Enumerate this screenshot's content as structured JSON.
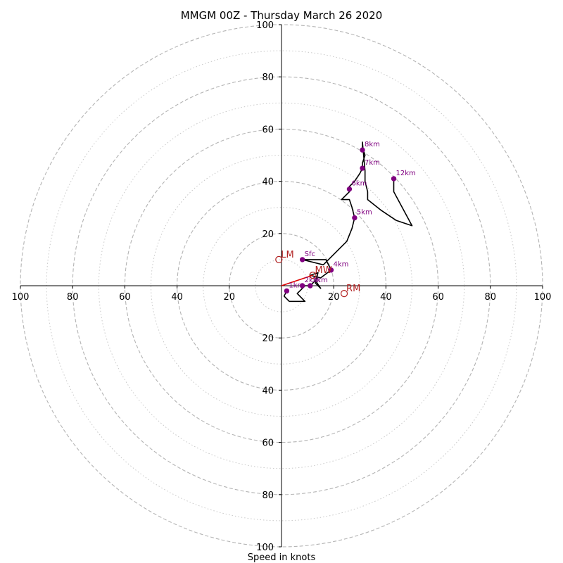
{
  "chart_data": {
    "type": "scatter",
    "title": "MMGM 00Z - Thursday March 26 2020",
    "xlabel": "Speed in knots",
    "xlim": [
      -100,
      100
    ],
    "ylim": [
      -100,
      100
    ],
    "rings_major": [
      20,
      40,
      60,
      80,
      100
    ],
    "rings_minor": [
      10,
      30,
      50,
      70,
      90
    ],
    "tick_labels": [
      "100",
      "80",
      "60",
      "40",
      "20",
      "20",
      "40",
      "60",
      "80",
      "100"
    ],
    "tick_values": [
      -100,
      -80,
      -60,
      -40,
      -20,
      20,
      40,
      60,
      80,
      100
    ],
    "hodograph": {
      "color": "#000000",
      "points": [
        [
          2,
          -2
        ],
        [
          1,
          -4
        ],
        [
          3,
          -6
        ],
        [
          9,
          -6
        ],
        [
          6,
          -3
        ],
        [
          7,
          -2
        ],
        [
          9,
          0
        ],
        [
          11,
          0
        ],
        [
          13,
          2
        ],
        [
          15,
          -1
        ],
        [
          13,
          1
        ],
        [
          14,
          5
        ],
        [
          11,
          4
        ],
        [
          15,
          3
        ],
        [
          19,
          6
        ],
        [
          17,
          10
        ],
        [
          9,
          10
        ],
        [
          8,
          10
        ],
        [
          16,
          8
        ],
        [
          22,
          14
        ],
        [
          25,
          17
        ],
        [
          27,
          22
        ],
        [
          28,
          26
        ],
        [
          27,
          30
        ],
        [
          26,
          33
        ],
        [
          23,
          33
        ],
        [
          26,
          36
        ],
        [
          26,
          38
        ],
        [
          28,
          40
        ],
        [
          30,
          43
        ],
        [
          31,
          45
        ],
        [
          31,
          47
        ],
        [
          32,
          50
        ],
        [
          31,
          53
        ],
        [
          31,
          55
        ],
        [
          32,
          44
        ],
        [
          32,
          40
        ],
        [
          33,
          36
        ],
        [
          33,
          33
        ],
        [
          38,
          29
        ],
        [
          44,
          25
        ],
        [
          50,
          23
        ],
        [
          43,
          36
        ],
        [
          43,
          41
        ]
      ]
    },
    "height_markers": [
      {
        "label": "Sfc",
        "x": 8,
        "y": 10
      },
      {
        "label": "1km",
        "x": 2,
        "y": -2
      },
      {
        "label": "2km",
        "x": 8,
        "y": 0
      },
      {
        "label": "3km",
        "x": 11,
        "y": 0
      },
      {
        "label": "4km",
        "x": 19,
        "y": 6
      },
      {
        "label": "5km",
        "x": 28,
        "y": 26
      },
      {
        "label": "6km",
        "x": 26,
        "y": 37
      },
      {
        "label": "7km",
        "x": 31,
        "y": 45
      },
      {
        "label": "8km",
        "x": 31,
        "y": 52
      },
      {
        "label": "12km",
        "x": 43,
        "y": 41
      }
    ],
    "marker_color": "#800080",
    "motion_markers": [
      {
        "label": "LM",
        "x": -1,
        "y": 10
      },
      {
        "label": "MW",
        "x": 12,
        "y": 4
      },
      {
        "label": "RM",
        "x": 24,
        "y": -3
      }
    ],
    "motion_color": "#b22222",
    "shear_vector": {
      "from": [
        0,
        0
      ],
      "to": [
        12,
        4
      ],
      "color": "#dd0000"
    }
  }
}
